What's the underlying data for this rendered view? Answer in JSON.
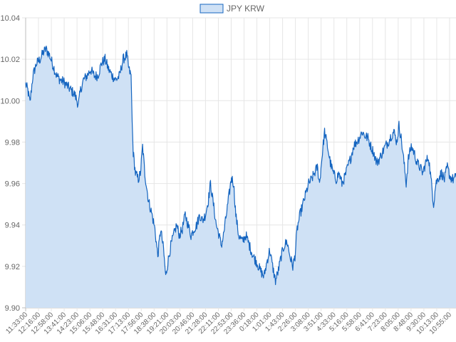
{
  "chart_data": {
    "type": "area",
    "title": "",
    "xlabel": "",
    "ylabel": "",
    "ylim": [
      9.9,
      10.04
    ],
    "yticks": [
      "10.04",
      "10.02",
      "10.00",
      "9.98",
      "9.96",
      "9.94",
      "9.92",
      "9.90"
    ],
    "grid": true,
    "legend": "top-center",
    "series": [
      {
        "name": "JPY KRW",
        "color": "#1565C0",
        "fill": "#cfe1f5",
        "anchors": [
          [
            0,
            10.008
          ],
          [
            3,
            10.005
          ],
          [
            6,
            9.999
          ],
          [
            10,
            10.012
          ],
          [
            15,
            10.018
          ],
          [
            20,
            10.02
          ],
          [
            24,
            10.023
          ],
          [
            28,
            10.025
          ],
          [
            33,
            10.022
          ],
          [
            38,
            10.017
          ],
          [
            43,
            10.012
          ],
          [
            48,
            10.01
          ],
          [
            53,
            10.009
          ],
          [
            58,
            10.007
          ],
          [
            63,
            10.005
          ],
          [
            68,
            10.003
          ],
          [
            73,
            9.998
          ],
          [
            76,
            10.005
          ],
          [
            80,
            10.01
          ],
          [
            85,
            10.012
          ],
          [
            90,
            10.015
          ],
          [
            95,
            10.012
          ],
          [
            100,
            10.012
          ],
          [
            105,
            10.018
          ],
          [
            110,
            10.02
          ],
          [
            115,
            10.015
          ],
          [
            120,
            10.012
          ],
          [
            125,
            10.01
          ],
          [
            130,
            10.012
          ],
          [
            135,
            10.02
          ],
          [
            140,
            10.022
          ],
          [
            143,
            10.015
          ],
          [
            146,
            10.012
          ],
          [
            147.5,
            9.99
          ],
          [
            149,
            9.975
          ],
          [
            152,
            9.965
          ],
          [
            156,
            9.962
          ],
          [
            159,
            9.965
          ],
          [
            162,
            9.978
          ],
          [
            165,
            9.965
          ],
          [
            170,
            9.952
          ],
          [
            175,
            9.945
          ],
          [
            179,
            9.938
          ],
          [
            183,
            9.925
          ],
          [
            187,
            9.938
          ],
          [
            191,
            9.928
          ],
          [
            194,
            9.915
          ],
          [
            197,
            9.922
          ],
          [
            201,
            9.93
          ],
          [
            205,
            9.935
          ],
          [
            209,
            9.94
          ],
          [
            213,
            9.935
          ],
          [
            217,
            9.938
          ],
          [
            221,
            9.945
          ],
          [
            225,
            9.94
          ],
          [
            229,
            9.935
          ],
          [
            233,
            9.938
          ],
          [
            237,
            9.94
          ],
          [
            241,
            9.945
          ],
          [
            245,
            9.942
          ],
          [
            249,
            9.945
          ],
          [
            253,
            9.952
          ],
          [
            256,
            9.96
          ],
          [
            260,
            9.95
          ],
          [
            264,
            9.94
          ],
          [
            268,
            9.935
          ],
          [
            271,
            9.93
          ],
          [
            274,
            9.935
          ],
          [
            278,
            9.945
          ],
          [
            282,
            9.955
          ],
          [
            285,
            9.963
          ],
          [
            288,
            9.96
          ],
          [
            291,
            9.945
          ],
          [
            295,
            9.935
          ],
          [
            300,
            9.932
          ],
          [
            305,
            9.935
          ],
          [
            310,
            9.93
          ],
          [
            315,
            9.925
          ],
          [
            320,
            9.922
          ],
          [
            325,
            9.918
          ],
          [
            330,
            9.915
          ],
          [
            334,
            9.922
          ],
          [
            338,
            9.928
          ],
          [
            342,
            9.92
          ],
          [
            346,
            9.913
          ],
          [
            350,
            9.918
          ],
          [
            354,
            9.925
          ],
          [
            358,
            9.93
          ],
          [
            362,
            9.932
          ],
          [
            366,
            9.925
          ],
          [
            370,
            9.92
          ],
          [
            373,
            9.925
          ],
          [
            376,
            9.938
          ],
          [
            380,
            9.945
          ],
          [
            384,
            9.95
          ],
          [
            388,
            9.955
          ],
          [
            392,
            9.96
          ],
          [
            396,
            9.962
          ],
          [
            400,
            9.965
          ],
          [
            404,
            9.968
          ],
          [
            407,
            9.96
          ],
          [
            411,
            9.975
          ],
          [
            414,
            9.985
          ],
          [
            418,
            9.978
          ],
          [
            422,
            9.97
          ],
          [
            426,
            9.965
          ],
          [
            430,
            9.962
          ],
          [
            434,
            9.965
          ],
          [
            438,
            9.96
          ],
          [
            442,
            9.963
          ],
          [
            446,
            9.968
          ],
          [
            450,
            9.972
          ],
          [
            454,
            9.978
          ],
          [
            458,
            9.98
          ],
          [
            462,
            9.982
          ],
          [
            466,
            9.985
          ],
          [
            470,
            9.983
          ],
          [
            474,
            9.982
          ],
          [
            478,
            9.978
          ],
          [
            482,
            9.975
          ],
          [
            486,
            9.97
          ],
          [
            490,
            9.972
          ],
          [
            494,
            9.975
          ],
          [
            498,
            9.978
          ],
          [
            502,
            9.98
          ],
          [
            506,
            9.983
          ],
          [
            510,
            9.985
          ],
          [
            514,
            9.98
          ],
          [
            517,
            9.988
          ],
          [
            520,
            9.982
          ],
          [
            524,
            9.97
          ],
          [
            527,
            9.96
          ],
          [
            530,
            9.972
          ],
          [
            534,
            9.978
          ],
          [
            538,
            9.975
          ],
          [
            542,
            9.97
          ],
          [
            546,
            9.968
          ],
          [
            550,
            9.965
          ],
          [
            554,
            9.97
          ],
          [
            558,
            9.973
          ],
          [
            562,
            9.96
          ],
          [
            565,
            9.95
          ],
          [
            568,
            9.96
          ],
          [
            572,
            9.963
          ],
          [
            576,
            9.965
          ],
          [
            580,
            9.962
          ],
          [
            584,
            9.968
          ],
          [
            588,
            9.963
          ],
          [
            592,
            9.962
          ],
          [
            596,
            9.963
          ]
        ],
        "values_note": "exchange rate, JPY to KRW"
      }
    ],
    "x_tick_labels": [
      "11:33:00",
      "12:16:00",
      "12:58:00",
      "13:41:00",
      "14:23:00",
      "15:06:00",
      "15:48:00",
      "16:31:00",
      "17:13:00",
      "17:56:00",
      "18:38:00",
      "19:21:00",
      "20:03:00",
      "20:46:00",
      "21:28:00",
      "22:11:00",
      "22:53:00",
      "23:36:00",
      "0:18:00",
      "1:01:00",
      "1:43:00",
      "2:26:00",
      "3:08:00",
      "3:51:00",
      "4:33:00",
      "5:16:00",
      "5:58:00",
      "6:41:00",
      "7:23:00",
      "8:05:00",
      "8:48:00",
      "9:30:00",
      "10:13:00",
      "10:55:00"
    ]
  }
}
